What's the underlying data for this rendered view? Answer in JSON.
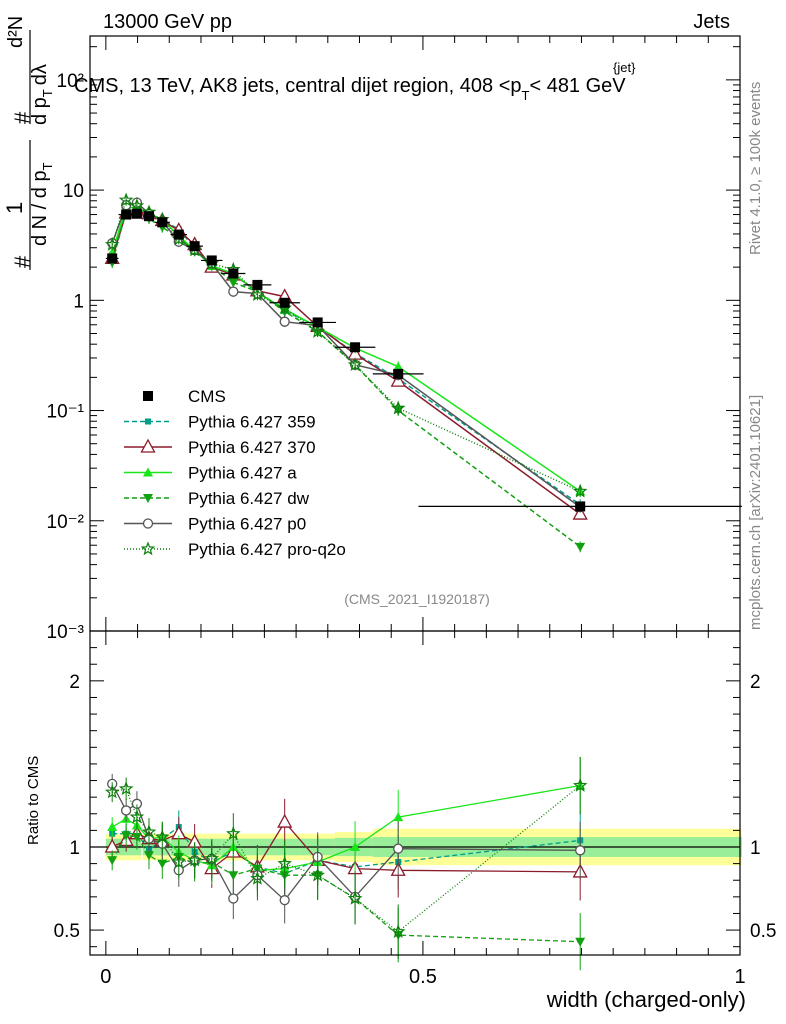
{
  "header": {
    "left": "13000 GeV pp",
    "right": "Jets"
  },
  "side_labels": {
    "rivet": "Rivet 4.1.0, ≥ 100k events",
    "mcplots": "mcplots.cern.ch [arXiv:2401.10621]"
  },
  "chart_data": {
    "type": "line",
    "title": "CMS, 13 TeV, AK8 jets, central dijet region, 408 <p_T^{jet}< 481 GeV",
    "title_parts": {
      "prefix": "CMS, 13 TeV, AK8 jets, central dijet region, 408 <p",
      "sub": "T",
      "sup": "{jet}",
      "suffix": "< 481 GeV"
    },
    "analysis_id": "(CMS_2021_I1920187)",
    "xlabel": "width (charged-only)",
    "ylabel": "1/dN/dpT # d²N/dpT dλ",
    "ylabel_parts": {
      "hash1": "#",
      "one": "1",
      "den": "d N / d p",
      "sub": "T",
      "hash2": "#",
      "d2N": "d²N",
      "dp": "d p",
      "dsub": "T",
      "dl": "dλ"
    },
    "ratio_ylabel": "Ratio to CMS",
    "xlim": [
      -0.025,
      1.0
    ],
    "ylim": [
      0.001,
      250
    ],
    "yscale": "log",
    "ratio_ylim": [
      0.35,
      2.3
    ],
    "x_ticks": [
      "0",
      "0.5",
      "1"
    ],
    "x_tick_values": [
      0,
      0.5,
      1
    ],
    "y_ticks": [
      "10⁻³",
      "10⁻²",
      "10⁻¹",
      "1",
      "10",
      "10²"
    ],
    "y_tick_values": [
      0.001,
      0.01,
      0.1,
      1,
      10,
      100
    ],
    "ratio_ticks": [
      "0.5",
      "1",
      "2"
    ],
    "ratio_tick_values": [
      0.5,
      1,
      2
    ],
    "legend_position": "middle-left",
    "x": [
      0.01,
      0.032,
      0.049,
      0.068,
      0.089,
      0.115,
      0.14,
      0.167,
      0.201,
      0.239,
      0.282,
      0.334,
      0.393,
      0.461,
      0.748
    ],
    "xerr": [
      0.01,
      0.012,
      0.007,
      0.01,
      0.012,
      0.013,
      0.013,
      0.017,
      0.019,
      0.022,
      0.024,
      0.029,
      0.032,
      0.04,
      0.255
    ],
    "reference": {
      "name": "CMS",
      "values": [
        2.4,
        6.0,
        6.1,
        5.8,
        5.1,
        3.95,
        3.1,
        2.3,
        1.75,
        1.38,
        0.95,
        0.63,
        0.375,
        0.215,
        0.0135
      ],
      "band_inner": [
        0.05,
        0.05,
        0.05,
        0.05,
        0.05,
        0.05,
        0.05,
        0.05,
        0.05,
        0.05,
        0.05,
        0.05,
        0.055,
        0.06,
        0.06
      ],
      "band_outer": [
        0.08,
        0.08,
        0.08,
        0.08,
        0.08,
        0.08,
        0.08,
        0.08,
        0.08,
        0.08,
        0.08,
        0.08,
        0.09,
        0.11,
        0.11
      ]
    },
    "series": [
      {
        "name": "Pythia 6.427 359",
        "color": "#009f8a",
        "dash": "5,3",
        "marker": "square-small",
        "values": [
          2.6,
          6.5,
          6.6,
          5.7,
          5.4,
          4.4,
          3.0,
          2.1,
          1.7,
          1.22,
          0.8,
          0.58,
          0.33,
          0.195,
          0.014
        ],
        "ratio": [
          1.08,
          1.08,
          1.08,
          0.98,
          1.05,
          1.12,
          0.97,
          0.91,
          0.97,
          0.88,
          0.84,
          0.92,
          0.88,
          0.91,
          1.04
        ]
      },
      {
        "name": "Pythia 6.427 370",
        "color": "#8b1a2a",
        "dash": "",
        "marker": "triangle-open",
        "values": [
          2.4,
          6.2,
          6.6,
          6.1,
          5.3,
          4.3,
          3.2,
          2.0,
          1.7,
          1.22,
          1.08,
          0.58,
          0.325,
          0.185,
          0.0115
        ],
        "ratio": [
          1.0,
          1.04,
          1.08,
          1.05,
          1.04,
          1.08,
          1.03,
          0.87,
          0.97,
          0.88,
          1.15,
          0.92,
          0.87,
          0.86,
          0.85
        ]
      },
      {
        "name": "Pythia 6.427 a",
        "color": "#19e619",
        "dash": "",
        "marker": "triangle-up",
        "values": [
          2.7,
          7.0,
          6.9,
          6.1,
          5.4,
          3.85,
          2.85,
          2.05,
          1.75,
          1.18,
          0.83,
          0.57,
          0.37,
          0.25,
          0.0185
        ],
        "ratio": [
          1.12,
          1.17,
          1.13,
          1.05,
          1.06,
          0.97,
          0.92,
          0.89,
          1.0,
          0.86,
          0.87,
          0.91,
          1.0,
          1.18,
          1.37
        ]
      },
      {
        "name": "Pythia 6.427 dw",
        "color": "#11a111",
        "dash": "5,3",
        "marker": "triangle-down",
        "values": [
          2.2,
          6.4,
          6.5,
          5.5,
          4.6,
          3.7,
          2.8,
          2.1,
          1.45,
          1.2,
          0.79,
          0.52,
          0.26,
          0.1,
          0.0058
        ],
        "ratio": [
          0.92,
          1.07,
          1.06,
          0.95,
          0.9,
          0.94,
          0.9,
          0.91,
          0.83,
          0.87,
          0.83,
          0.83,
          0.69,
          0.47,
          0.43
        ]
      },
      {
        "name": "Pythia 6.427 p0",
        "color": "#555555",
        "dash": "",
        "marker": "circle-open",
        "values": [
          3.3,
          7.3,
          7.7,
          6.1,
          5.2,
          3.4,
          2.85,
          2.15,
          1.2,
          1.15,
          0.64,
          0.59,
          0.26,
          0.21,
          0.0133
        ],
        "ratio": [
          1.38,
          1.22,
          1.26,
          1.05,
          1.02,
          0.86,
          0.92,
          0.93,
          0.69,
          0.83,
          0.68,
          0.94,
          0.7,
          0.99,
          0.98
        ]
      },
      {
        "name": "Pythia 6.427 pro-q2o",
        "color": "#0a800a",
        "dash": "1,2",
        "marker": "star",
        "values": [
          3.2,
          8.1,
          7.2,
          6.3,
          5.4,
          3.6,
          2.85,
          2.15,
          1.9,
          1.12,
          0.85,
          0.52,
          0.26,
          0.105,
          0.0185
        ],
        "ratio": [
          1.33,
          1.35,
          1.18,
          1.09,
          1.06,
          0.91,
          0.92,
          0.93,
          1.08,
          0.81,
          0.9,
          0.83,
          0.69,
          0.49,
          1.37
        ]
      }
    ]
  }
}
